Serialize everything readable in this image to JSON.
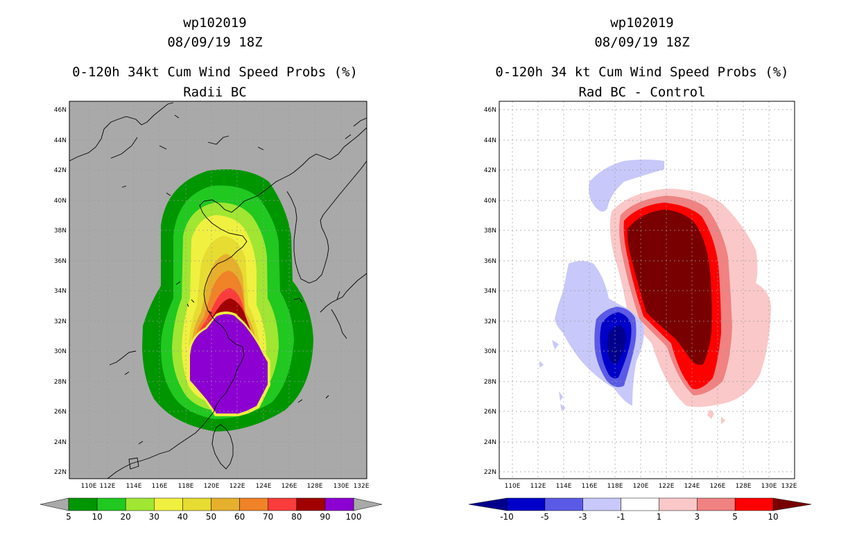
{
  "left_panel": {
    "storm_id": "wp102019",
    "datetime": "08/09/19 18Z",
    "product": "0-120h 34kt Cum Wind Speed Probs (%)",
    "subtitle": "Radii BC",
    "background_color": "#a9a9a9",
    "colorbar": {
      "labels": [
        "5",
        "10",
        "20",
        "30",
        "40",
        "50",
        "60",
        "70",
        "80",
        "90",
        "100"
      ],
      "colors": [
        "#009600",
        "#20c820",
        "#a0e632",
        "#f0f040",
        "#e6dc32",
        "#e6af2d",
        "#f08228",
        "#fa3c3c",
        "#a00000",
        "#8c00d2"
      ],
      "extension_color": "#a9a9a9"
    }
  },
  "right_panel": {
    "storm_id": "wp102019",
    "datetime": "08/09/19 18Z",
    "product": "0-120h 34 kt Cum Wind Speed Probs (%)",
    "subtitle": "Rad BC - Control",
    "background_color": "#ffffff",
    "colorbar": {
      "labels": [
        "-10",
        "-5",
        "-3",
        "-1",
        "1",
        "3",
        "5",
        "10"
      ],
      "colors": [
        "#0000c8",
        "#5a5ae6",
        "#c8c8fa",
        "#ffffff",
        "#fac8c8",
        "#f08282",
        "#ff0000"
      ],
      "low_color": "#00008c",
      "high_color": "#780000"
    }
  },
  "map_axes": {
    "lat_labels": [
      "46N",
      "44N",
      "42N",
      "40N",
      "38N",
      "36N",
      "34N",
      "32N",
      "30N",
      "28N",
      "26N",
      "24N",
      "22N"
    ],
    "lon_labels": [
      "110E",
      "112E",
      "114E",
      "116E",
      "118E",
      "120E",
      "122E",
      "124E",
      "126E",
      "128E",
      "130E",
      "132E"
    ],
    "lat_range": [
      21.5,
      46.5
    ],
    "lon_range": [
      109,
      132
    ]
  }
}
